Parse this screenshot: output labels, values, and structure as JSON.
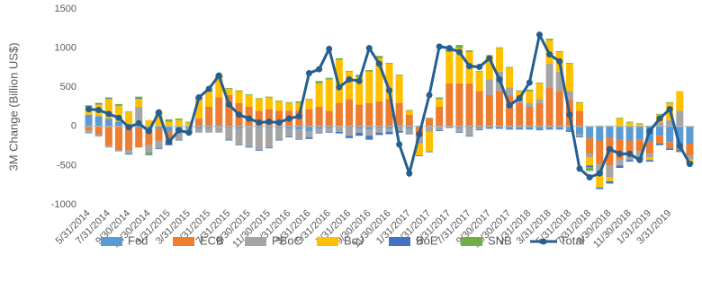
{
  "chart_data": {
    "type": "bar",
    "y_label": "3M Change (Billion US$)",
    "categories": [
      "5/31/2014",
      null,
      "7/31/2014",
      null,
      "9/30/2014",
      null,
      "11/30/2014",
      null,
      "1/31/2015",
      null,
      "3/31/2015",
      null,
      "5/31/2015",
      null,
      "7/31/2015",
      null,
      "9/30/2015",
      null,
      "11/30/2015",
      null,
      "1/31/2016",
      null,
      "3/31/2016",
      null,
      "5/31/2016",
      null,
      "7/31/2016",
      null,
      "9/30/2016",
      null,
      "11/30/2016",
      null,
      "1/31/2017",
      null,
      "3/31/2017",
      null,
      "5/31/2017",
      null,
      "7/31/2017",
      null,
      "9/30/2017",
      null,
      "11/30/2017",
      null,
      "1/31/2018",
      null,
      "3/31/2018",
      null,
      "5/31/2018",
      null,
      "7/31/2018",
      null,
      "9/30/2018",
      null,
      "11/30/2018",
      null,
      "1/31/2019",
      null,
      "3/31/2019",
      null,
      null
    ],
    "series": [
      {
        "name": "Fed",
        "color": "#5b9bd5",
        "values": [
          150,
          130,
          100,
          60,
          30,
          -20,
          -40,
          -30,
          -60,
          -40,
          -20,
          -30,
          -20,
          20,
          -20,
          -30,
          -10,
          -20,
          -20,
          -20,
          -30,
          -40,
          -60,
          -30,
          -20,
          -10,
          -20,
          -30,
          -40,
          -20,
          -30,
          -20,
          -30,
          -20,
          -10,
          -10,
          -10,
          -20,
          -20,
          -20,
          -20,
          -20,
          -30,
          -30,
          -30,
          -40,
          -30,
          -30,
          -60,
          -100,
          -150,
          -180,
          -150,
          -170,
          -180,
          -170,
          -200,
          -120,
          -200,
          -250,
          -220
        ]
      },
      {
        "name": "ECB",
        "color": "#ed7d31",
        "values": [
          -50,
          -100,
          -250,
          -300,
          -300,
          -250,
          -200,
          -150,
          -100,
          -50,
          0,
          100,
          250,
          350,
          400,
          300,
          250,
          200,
          220,
          200,
          200,
          200,
          220,
          250,
          200,
          300,
          350,
          280,
          300,
          320,
          350,
          300,
          150,
          -100,
          100,
          250,
          550,
          550,
          550,
          450,
          400,
          450,
          400,
          300,
          250,
          300,
          500,
          450,
          350,
          200,
          -200,
          -300,
          -350,
          -250,
          -150,
          -150,
          -150,
          -100,
          -80,
          -50,
          -150
        ]
      },
      {
        "name": "PBoC",
        "color": "#a5a5a5",
        "values": [
          -40,
          -30,
          -20,
          -20,
          -50,
          250,
          -100,
          -100,
          -60,
          -80,
          -60,
          -50,
          -60,
          -80,
          -150,
          -200,
          -250,
          -280,
          -250,
          -150,
          -100,
          -120,
          -80,
          -50,
          -50,
          -60,
          -100,
          -50,
          -80,
          -60,
          -40,
          -40,
          -60,
          -100,
          -60,
          -40,
          0,
          -50,
          -100,
          -20,
          200,
          250,
          100,
          50,
          50,
          50,
          300,
          250,
          100,
          -30,
          -50,
          -150,
          -150,
          -80,
          -100,
          -80,
          -50,
          50,
          80,
          200,
          -50
        ]
      },
      {
        "name": "BoJ",
        "color": "#ffc000",
        "values": [
          100,
          150,
          250,
          200,
          150,
          100,
          80,
          150,
          60,
          80,
          50,
          250,
          200,
          250,
          80,
          150,
          150,
          150,
          150,
          120,
          100,
          100,
          120,
          300,
          400,
          550,
          350,
          350,
          400,
          550,
          450,
          350,
          50,
          -150,
          -250,
          100,
          400,
          450,
          400,
          250,
          300,
          300,
          250,
          100,
          150,
          200,
          300,
          250,
          350,
          100,
          -100,
          -150,
          -50,
          100,
          50,
          30,
          -30,
          100,
          220,
          250,
          -30
        ]
      },
      {
        "name": "BoE",
        "color": "#4472c4",
        "values": [
          10,
          10,
          10,
          5,
          -10,
          10,
          -10,
          -10,
          -20,
          -10,
          -10,
          10,
          10,
          20,
          -10,
          -10,
          -10,
          -10,
          -10,
          -10,
          -10,
          -10,
          -20,
          -10,
          -10,
          -20,
          -30,
          -40,
          -50,
          -30,
          -30,
          -20,
          -10,
          -10,
          -10,
          -10,
          -10,
          -10,
          -10,
          -10,
          -10,
          -10,
          -10,
          -10,
          -10,
          -10,
          -10,
          -10,
          -10,
          -10,
          -20,
          -20,
          -30,
          -30,
          -20,
          -20,
          -20,
          -20,
          -20,
          -20,
          -20
        ]
      },
      {
        "name": "SNB",
        "color": "#70ad47",
        "values": [
          10,
          10,
          10,
          20,
          10,
          20,
          -20,
          30,
          30,
          20,
          10,
          20,
          10,
          20,
          10,
          10,
          10,
          10,
          10,
          10,
          10,
          20,
          10,
          30,
          20,
          20,
          10,
          30,
          20,
          30,
          10,
          10,
          10,
          10,
          10,
          20,
          30,
          40,
          20,
          10,
          10,
          10,
          10,
          10,
          20,
          10,
          20,
          10,
          10,
          10,
          -50,
          10,
          10,
          10,
          10,
          10,
          10,
          10,
          10,
          -10,
          -10
        ]
      },
      {
        "name": "Total",
        "color": "#255e91",
        "type": "line",
        "values": [
          220,
          210,
          160,
          110,
          -10,
          40,
          -60,
          180,
          -200,
          -50,
          -80,
          370,
          480,
          650,
          280,
          150,
          100,
          50,
          60,
          50,
          100,
          130,
          680,
          730,
          990,
          500,
          600,
          580,
          1000,
          800,
          460,
          -230,
          -600,
          -100,
          400,
          1020,
          1000,
          950,
          770,
          760,
          870,
          600,
          270,
          360,
          560,
          1170,
          920,
          830,
          150,
          -540,
          -650,
          -600,
          -290,
          -350,
          -350,
          -430,
          -60,
          100,
          220,
          -250,
          -480
        ]
      }
    ],
    "ylim": [
      -1000,
      1500
    ],
    "yticks": [
      -1000,
      -500,
      0,
      500,
      1000,
      1500
    ],
    "grid": false,
    "legend": "bottom"
  }
}
